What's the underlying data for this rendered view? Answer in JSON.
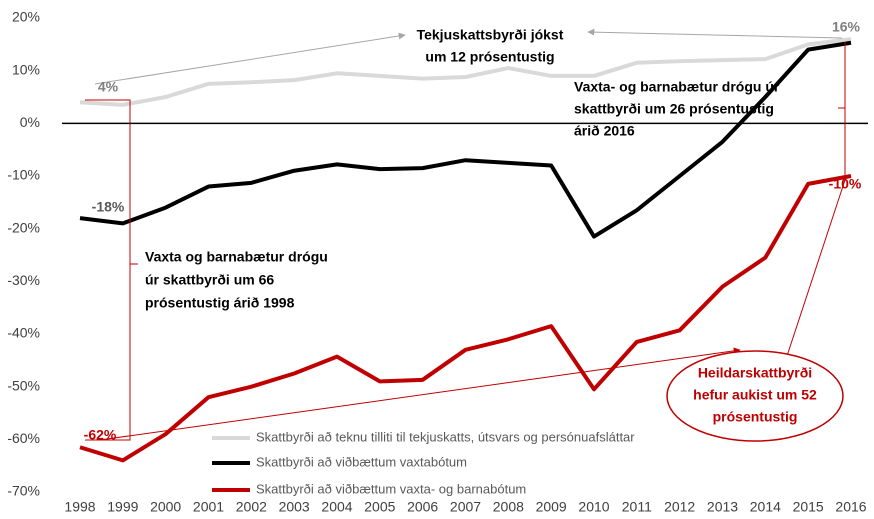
{
  "chart_data": {
    "type": "line",
    "categories": [
      "1998",
      "1999",
      "2000",
      "2001",
      "2002",
      "2003",
      "2004",
      "2005",
      "2006",
      "2007",
      "2008",
      "2009",
      "2010",
      "2011",
      "2012",
      "2013",
      "2014",
      "2015",
      "2016"
    ],
    "series": [
      {
        "name": "Skattbyrði að teknu tilliti til tekjuskatts, útsvars og persónuafsláttar",
        "color": "#d9d9d9",
        "values": [
          4,
          3.5,
          5,
          7.5,
          7.8,
          8.2,
          9.5,
          9,
          8.5,
          8.8,
          10.5,
          9,
          9,
          11.5,
          11.8,
          12,
          12.2,
          15,
          16
        ]
      },
      {
        "name": "Skattbyrði að viðbættum vaxtabótum",
        "color": "#000000",
        "values": [
          -18,
          -19,
          -16,
          -12,
          -11.3,
          -9,
          -7.8,
          -8.7,
          -8.5,
          -7,
          -7.5,
          -8,
          -21.5,
          -16.5,
          -10,
          -3.5,
          5,
          14,
          15.3
        ]
      },
      {
        "name": "Skattbyrði að viðbættum vaxta- og barnabótum",
        "color": "#c00000",
        "values": [
          -61.5,
          -64,
          -59,
          -52,
          -50,
          -47.5,
          -44.3,
          -49,
          -48.7,
          -43,
          -41,
          -38.5,
          -50.5,
          -41.5,
          -39.3,
          -31,
          -25.5,
          -11.5,
          -10
        ]
      }
    ],
    "ylim": [
      -70,
      20
    ],
    "yticks": [
      {
        "value": 20,
        "label": "20%"
      },
      {
        "value": 10,
        "label": "10%"
      },
      {
        "value": 0,
        "label": "0%"
      },
      {
        "value": -10,
        "label": "-10%"
      },
      {
        "value": -20,
        "label": "-20%"
      },
      {
        "value": -30,
        "label": "-30%"
      },
      {
        "value": -40,
        "label": "-40%"
      },
      {
        "value": -50,
        "label": "-50%"
      },
      {
        "value": -60,
        "label": "-60%"
      },
      {
        "value": -70,
        "label": "-70%"
      }
    ],
    "annotations": [
      {
        "lines": [
          "Tekjuskattsbyrði jókst",
          "um 12 prósentustig"
        ]
      },
      {
        "lines": [
          "4%"
        ]
      },
      {
        "lines": [
          "16%"
        ]
      },
      {
        "lines": [
          "Vaxta- og barnabætur drógu úr",
          "skattbyrði um 26 prósentustig",
          "árið 2016"
        ]
      },
      {
        "lines": [
          "-18%"
        ]
      },
      {
        "lines": [
          "Vaxta og barnabætur drógu",
          "úr skattbyrði um 66",
          "prósentustig árið 1998"
        ]
      },
      {
        "lines": [
          "-62%"
        ]
      },
      {
        "lines": [
          "-10%"
        ]
      },
      {
        "lines": [
          "Heildarskattbyrði",
          "hefur aukist um 52",
          "prósentustig"
        ]
      }
    ]
  }
}
